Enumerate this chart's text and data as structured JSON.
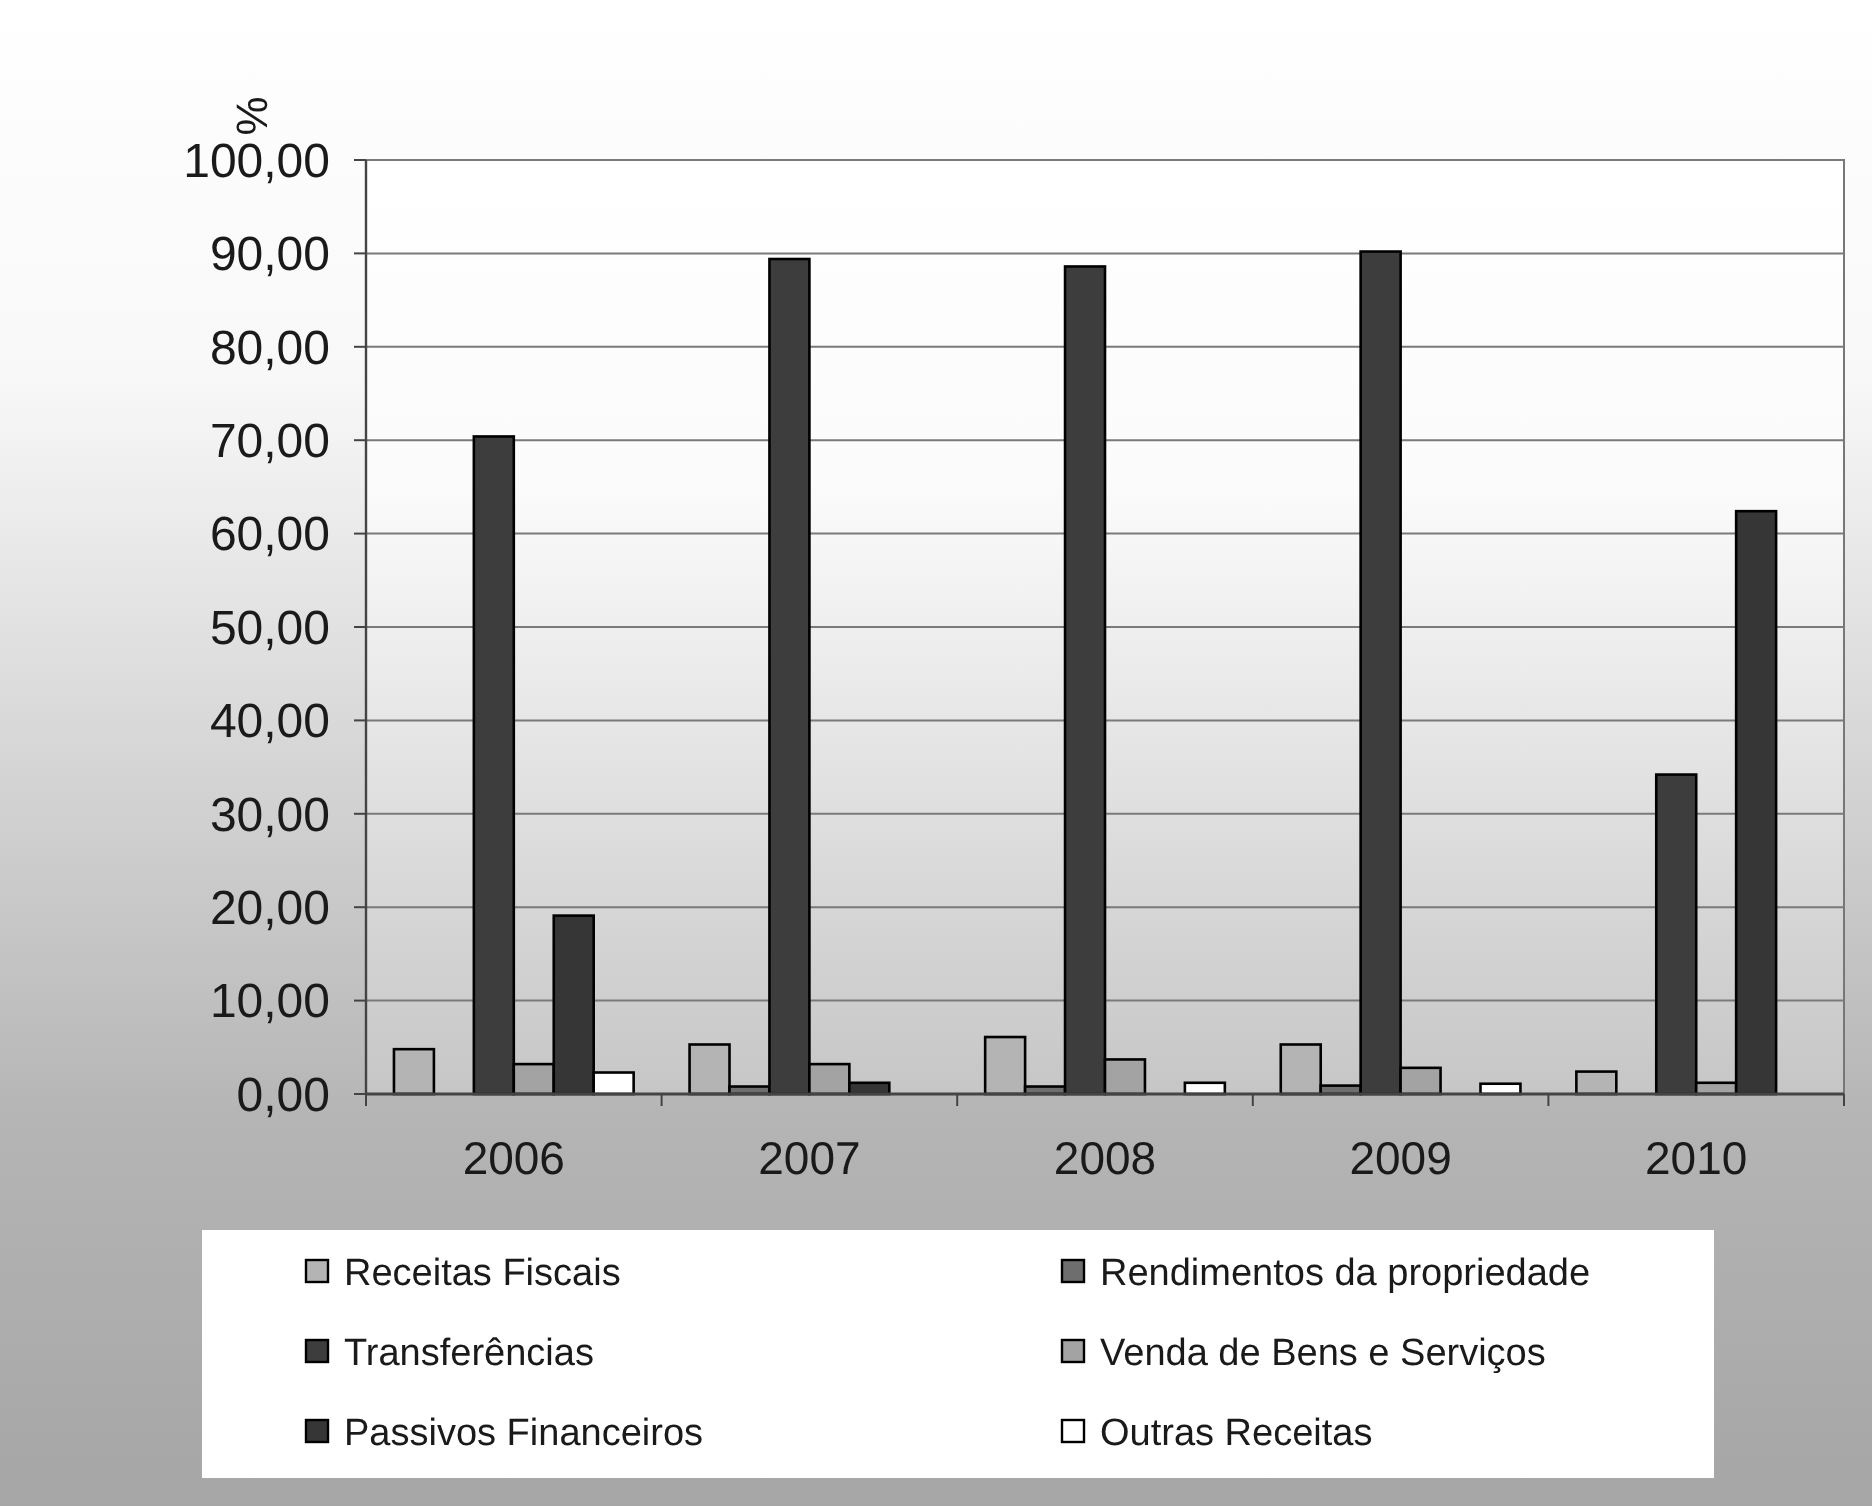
{
  "chart_data": {
    "type": "bar",
    "ylabel": "%",
    "categories": [
      "2006",
      "2007",
      "2008",
      "2009",
      "2010"
    ],
    "series": [
      {
        "name": "Receitas Fiscais",
        "color": "#b4b4b4",
        "values": [
          4.8,
          5.3,
          6.1,
          5.3,
          2.4
        ]
      },
      {
        "name": "Rendimentos da propriedade",
        "color": "#6e6e6e",
        "values": [
          null,
          0.8,
          0.8,
          0.9,
          null
        ]
      },
      {
        "name": "Transferências",
        "color": "#3d3d3d",
        "values": [
          70.4,
          89.4,
          88.6,
          90.2,
          34.2
        ]
      },
      {
        "name": "Venda de Bens e Serviços",
        "color": "#a3a3a3",
        "values": [
          3.2,
          3.2,
          3.7,
          2.8,
          1.2
        ]
      },
      {
        "name": "Passivos Financeiros",
        "color": "#363636",
        "values": [
          19.1,
          1.2,
          null,
          null,
          62.4
        ]
      },
      {
        "name": "Outras Receitas",
        "color": "#ffffff",
        "values": [
          2.3,
          null,
          1.2,
          1.1,
          null
        ]
      }
    ],
    "ylim": [
      0,
      100
    ],
    "yticks": [
      {
        "value": 0,
        "label": "0,00"
      },
      {
        "value": 10,
        "label": "10,00"
      },
      {
        "value": 20,
        "label": "20,00"
      },
      {
        "value": 30,
        "label": "30,00"
      },
      {
        "value": 40,
        "label": "40,00"
      },
      {
        "value": 50,
        "label": "50,00"
      },
      {
        "value": 60,
        "label": "60,00"
      },
      {
        "value": 70,
        "label": "70,00"
      },
      {
        "value": 80,
        "label": "80,00"
      },
      {
        "value": 90,
        "label": "90,00"
      },
      {
        "value": 100,
        "label": "100,00"
      }
    ],
    "grid": "y",
    "legend": "bottom"
  }
}
